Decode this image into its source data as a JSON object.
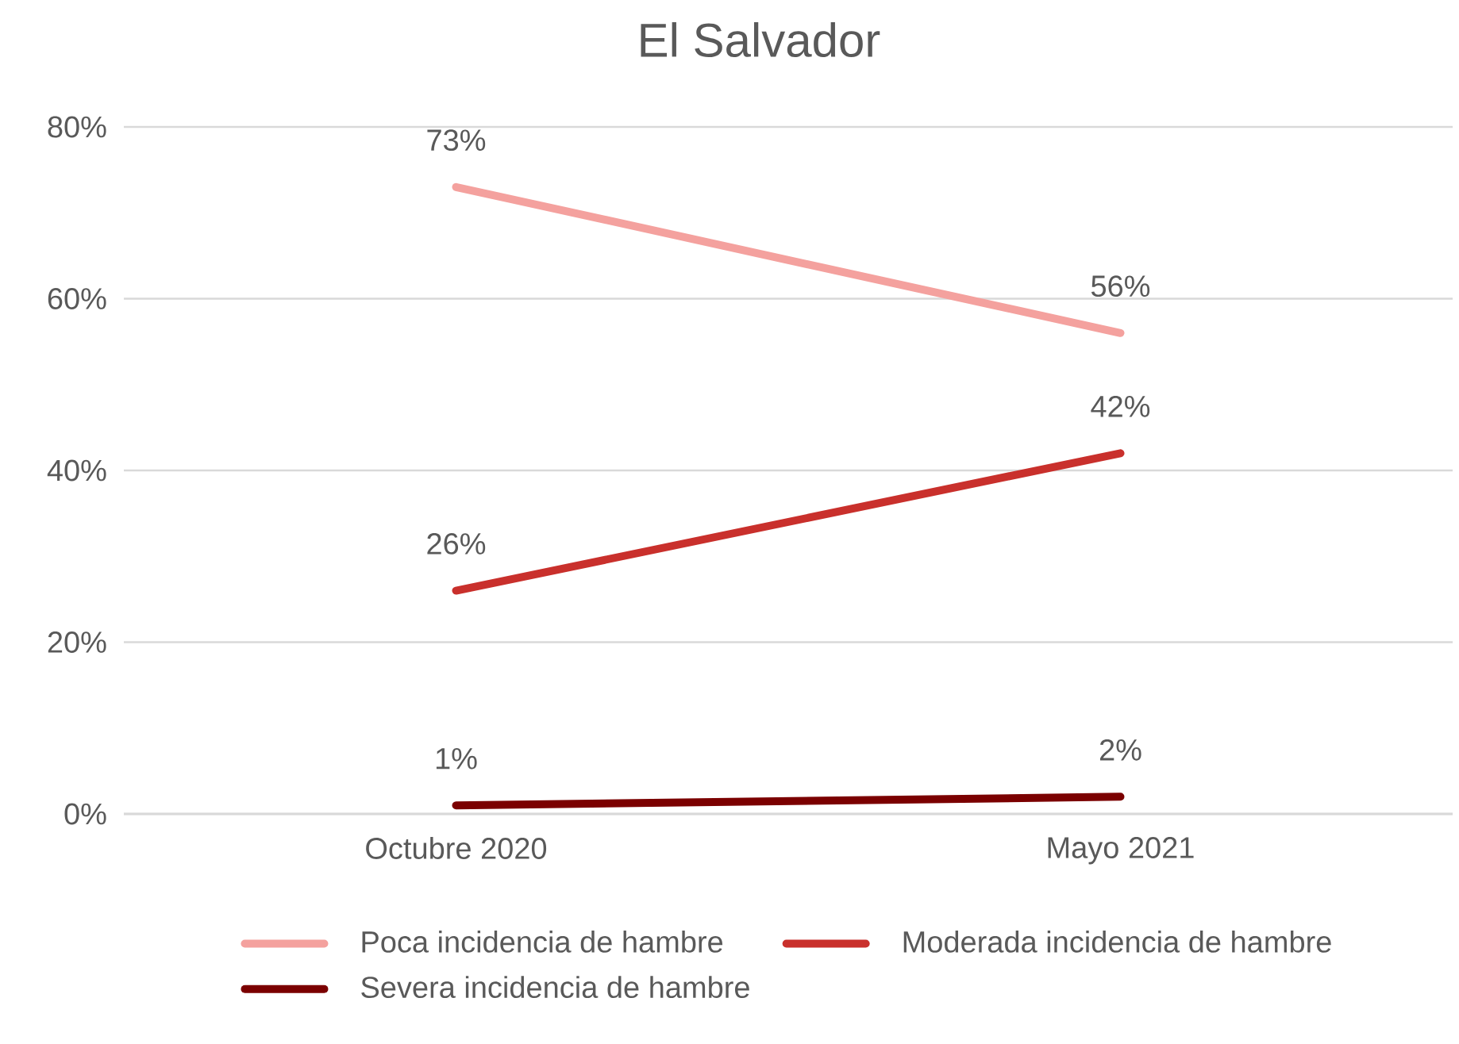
{
  "chart_data": {
    "type": "line",
    "title": "El Salvador",
    "categories": [
      "Octubre 2020",
      "Mayo 2021"
    ],
    "ylim": [
      0,
      80
    ],
    "yticks": [
      {
        "value": 0,
        "label": "0%"
      },
      {
        "value": 20,
        "label": "20%"
      },
      {
        "value": 40,
        "label": "40%"
      },
      {
        "value": 60,
        "label": "60%"
      },
      {
        "value": 80,
        "label": "80%"
      }
    ],
    "grid": "y",
    "legend": "bottom",
    "marker": "none",
    "line_style": "solid",
    "series": [
      {
        "name": "Poca incidencia de hambre",
        "color": "#f4a19e",
        "values": [
          73,
          56
        ],
        "value_labels": [
          "73%",
          "56%"
        ]
      },
      {
        "name": "Moderada incidencia de hambre",
        "color": "#c9302c",
        "values": [
          26,
          42
        ],
        "value_labels": [
          "26%",
          "42%"
        ]
      },
      {
        "name": "Severa incidencia de hambre",
        "color": "#7b0000",
        "values": [
          1,
          2
        ],
        "value_labels": [
          "1%",
          "2%"
        ]
      }
    ]
  }
}
